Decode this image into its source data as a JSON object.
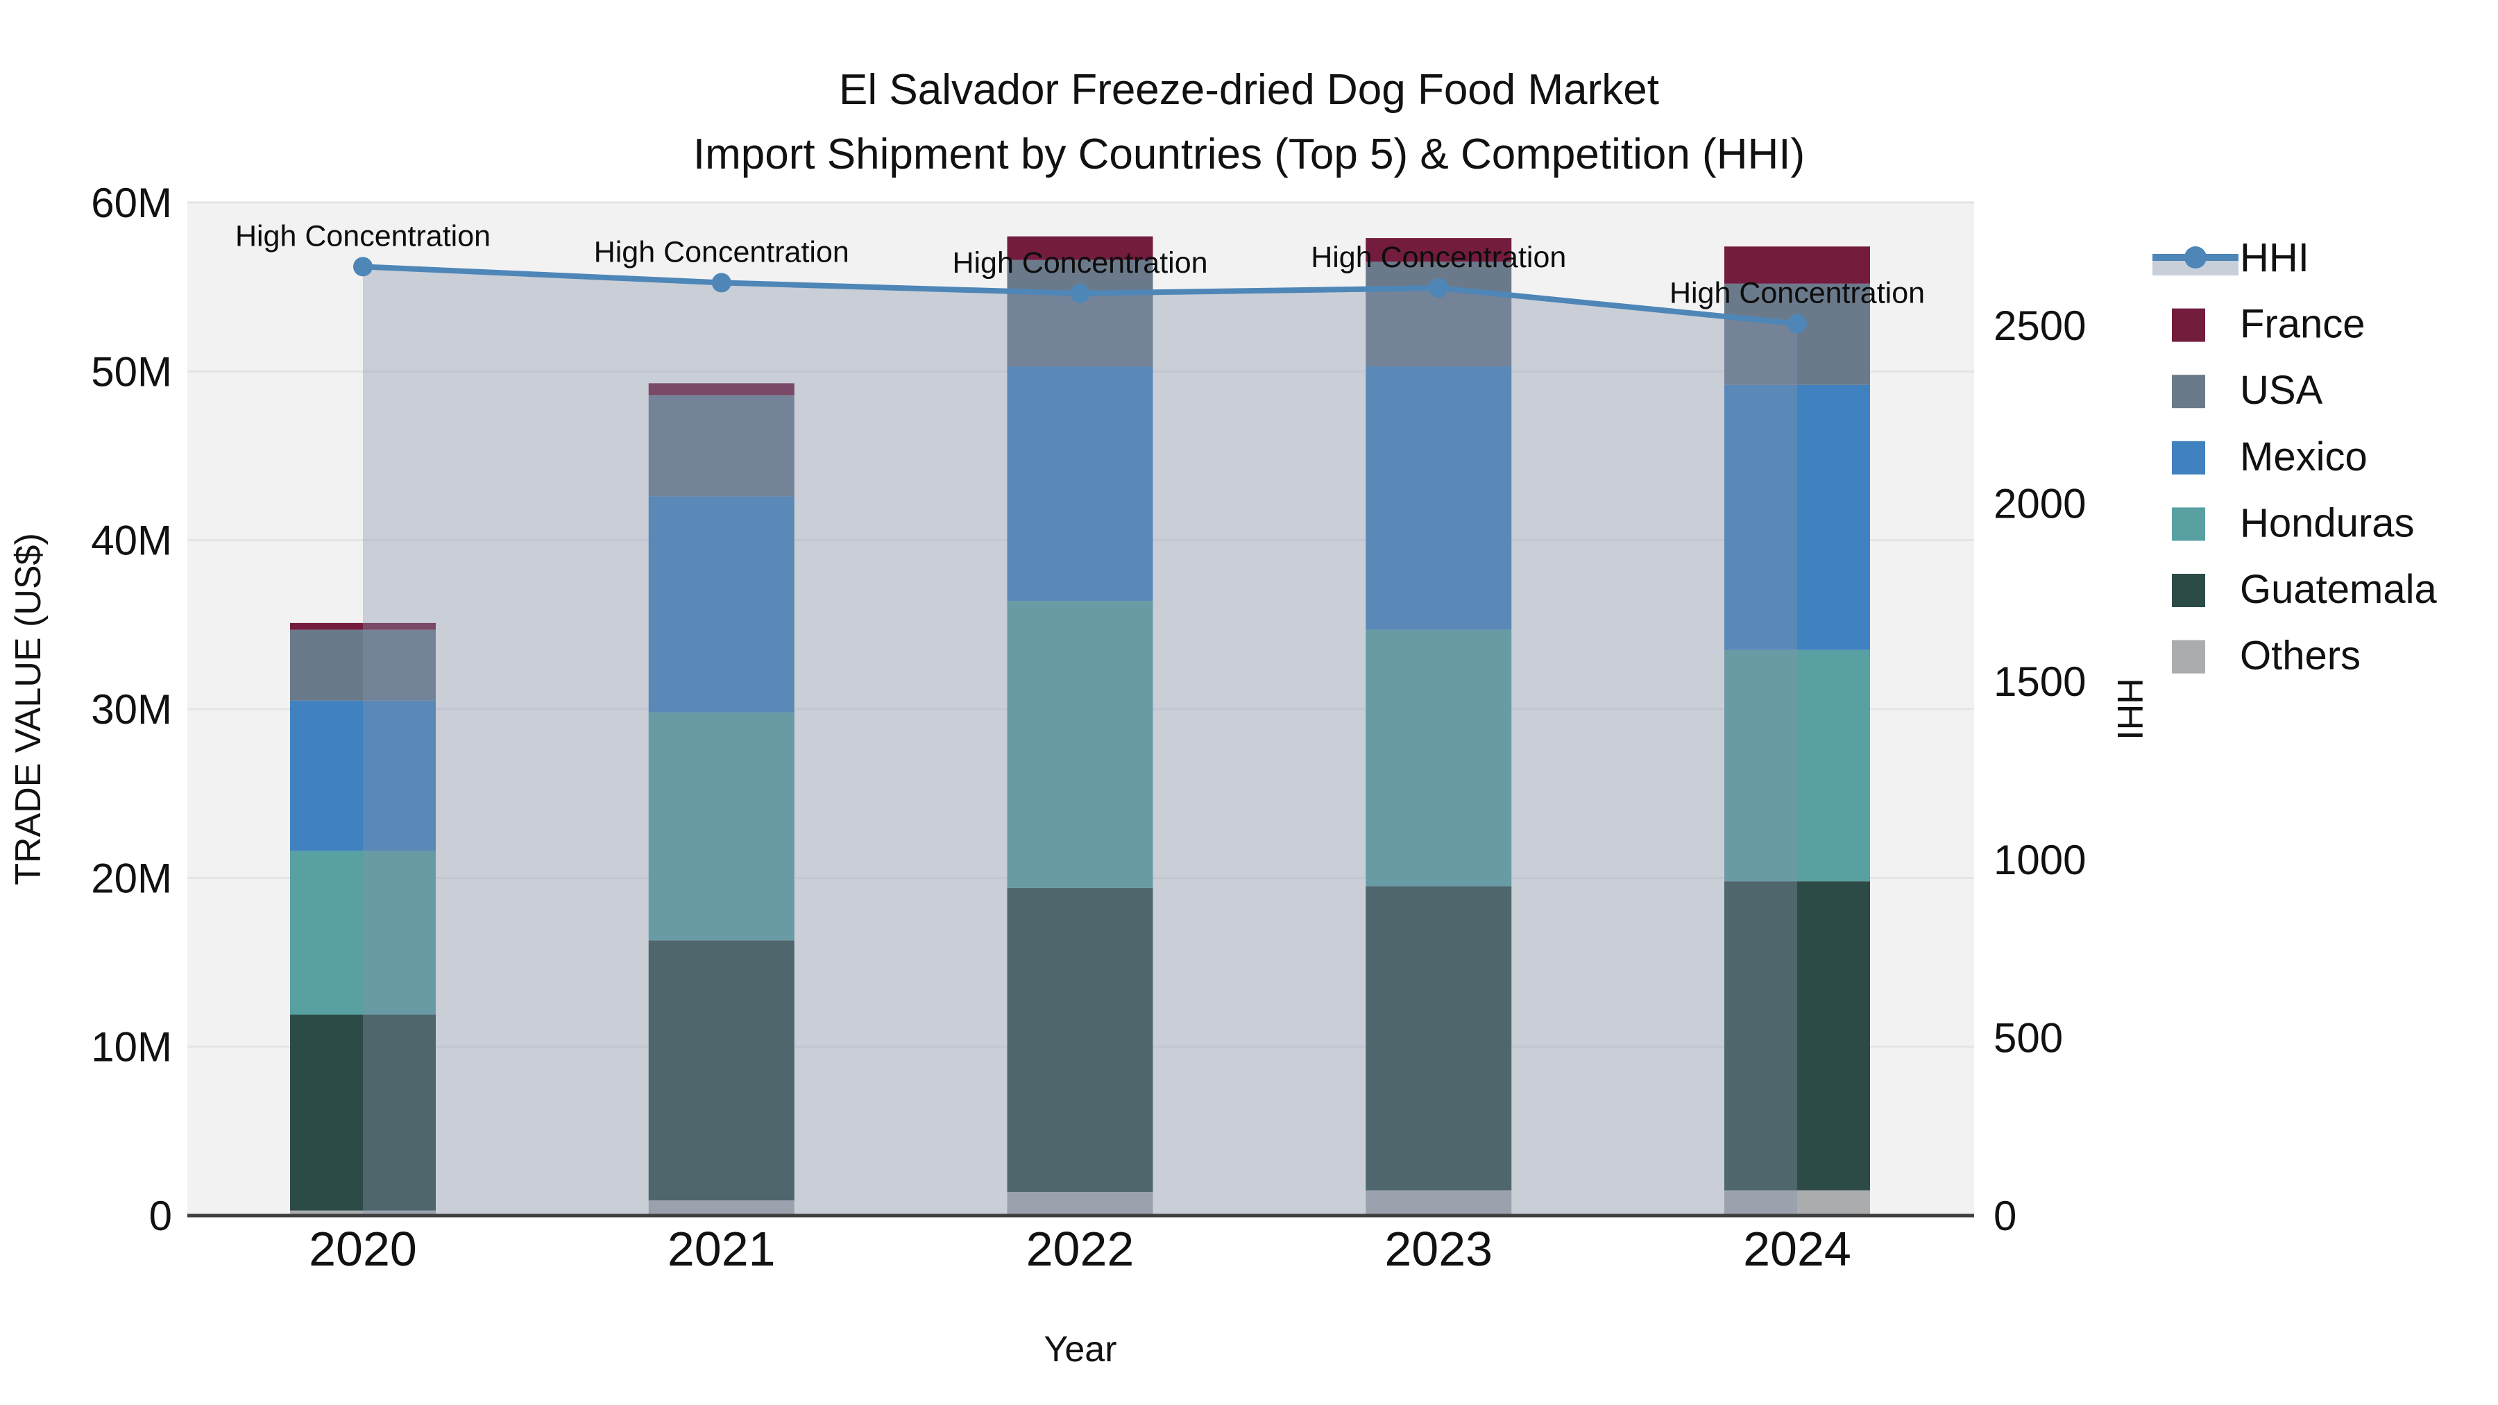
{
  "title": {
    "line1": "El Salvador Freeze-dried Dog Food Market",
    "line2": "Import Shipment by Countries (Top 5) & Competition (HHI)"
  },
  "axes": {
    "x": {
      "label": "Year",
      "tick_labels": [
        "2020",
        "2021",
        "2022",
        "2023",
        "2024"
      ]
    },
    "y_left": {
      "label": "TRADE VALUE (US$)",
      "tick_labels": [
        "0",
        "10M",
        "20M",
        "30M",
        "40M",
        "50M",
        "60M"
      ],
      "tick_values_millions": [
        0,
        10,
        20,
        30,
        40,
        50,
        60
      ],
      "max_millions": 60
    },
    "y_right": {
      "label": "HHI",
      "tick_labels": [
        "0",
        "500",
        "1000",
        "1500",
        "2000",
        "2500"
      ],
      "tick_values": [
        0,
        500,
        1000,
        1500,
        2000,
        2500
      ]
    }
  },
  "chart_data": {
    "type": "bar+line (stacked bars on left axis, HHI line with area fill on right axis)",
    "categories": [
      "2020",
      "2021",
      "2022",
      "2023",
      "2024"
    ],
    "bar_unit": "millions US$",
    "series": [
      {
        "name": "France",
        "color": "#731c3e",
        "values": [
          0.4,
          0.7,
          1.4,
          1.4,
          2.2
        ]
      },
      {
        "name": "USA",
        "color": "#6a7a8b",
        "values": [
          4.2,
          6.0,
          6.3,
          6.2,
          6.0
        ]
      },
      {
        "name": "Mexico",
        "color": "#4081bf",
        "values": [
          8.9,
          12.8,
          13.9,
          15.6,
          15.7
        ]
      },
      {
        "name": "Honduras",
        "color": "#58a0a2",
        "values": [
          9.7,
          13.5,
          17.0,
          15.2,
          13.7
        ]
      },
      {
        "name": "Guatemala",
        "color": "#2d4b46",
        "values": [
          11.6,
          15.4,
          18.0,
          18.0,
          18.3
        ]
      },
      {
        "name": "Others",
        "color": "#aaacae",
        "values": [
          0.3,
          0.9,
          1.4,
          1.5,
          1.5
        ]
      }
    ],
    "bar_totals_millions": [
      35.1,
      49.3,
      58.0,
      57.9,
      57.4
    ],
    "line_series": {
      "name": "HHI",
      "axis": "right",
      "color": "#4e86b8",
      "fill_color": "rgba(133,148,170,0.38)",
      "values": [
        2665,
        2620,
        2590,
        2605,
        2505
      ]
    },
    "annotations": [
      {
        "text": "High Concentration",
        "category": "2020"
      },
      {
        "text": "High Concentration",
        "category": "2021"
      },
      {
        "text": "High Concentration",
        "category": "2022"
      },
      {
        "text": "High Concentration",
        "category": "2023"
      },
      {
        "text": "High Concentration",
        "category": "2024"
      }
    ],
    "layout_hints": {
      "plot_background": "#f2f2f3",
      "gridlines": "horizontal, every 10M, subtle",
      "legend_position": "right, vertical",
      "legend_order": [
        "HHI",
        "France",
        "USA",
        "Mexico",
        "Honduras",
        "Guatemala",
        "Others"
      ],
      "stack_order_bottom_to_top": [
        "Others",
        "Guatemala",
        "Honduras",
        "Mexico",
        "USA",
        "France"
      ]
    }
  },
  "legend": {
    "items": [
      {
        "label": "HHI",
        "type": "line"
      },
      {
        "label": "France",
        "type": "swatch"
      },
      {
        "label": "USA",
        "type": "swatch"
      },
      {
        "label": "Mexico",
        "type": "swatch"
      },
      {
        "label": "Honduras",
        "type": "swatch"
      },
      {
        "label": "Guatemala",
        "type": "swatch"
      },
      {
        "label": "Others",
        "type": "swatch"
      }
    ]
  },
  "colors": {
    "plot_bg": "#f2f2f3",
    "grid": "#e5e5e8",
    "axis_line": "#3f3f3f",
    "hhi_line": "#4e86b8",
    "hhi_fill": "rgba(133,148,170,0.38)",
    "text": "#111111"
  }
}
